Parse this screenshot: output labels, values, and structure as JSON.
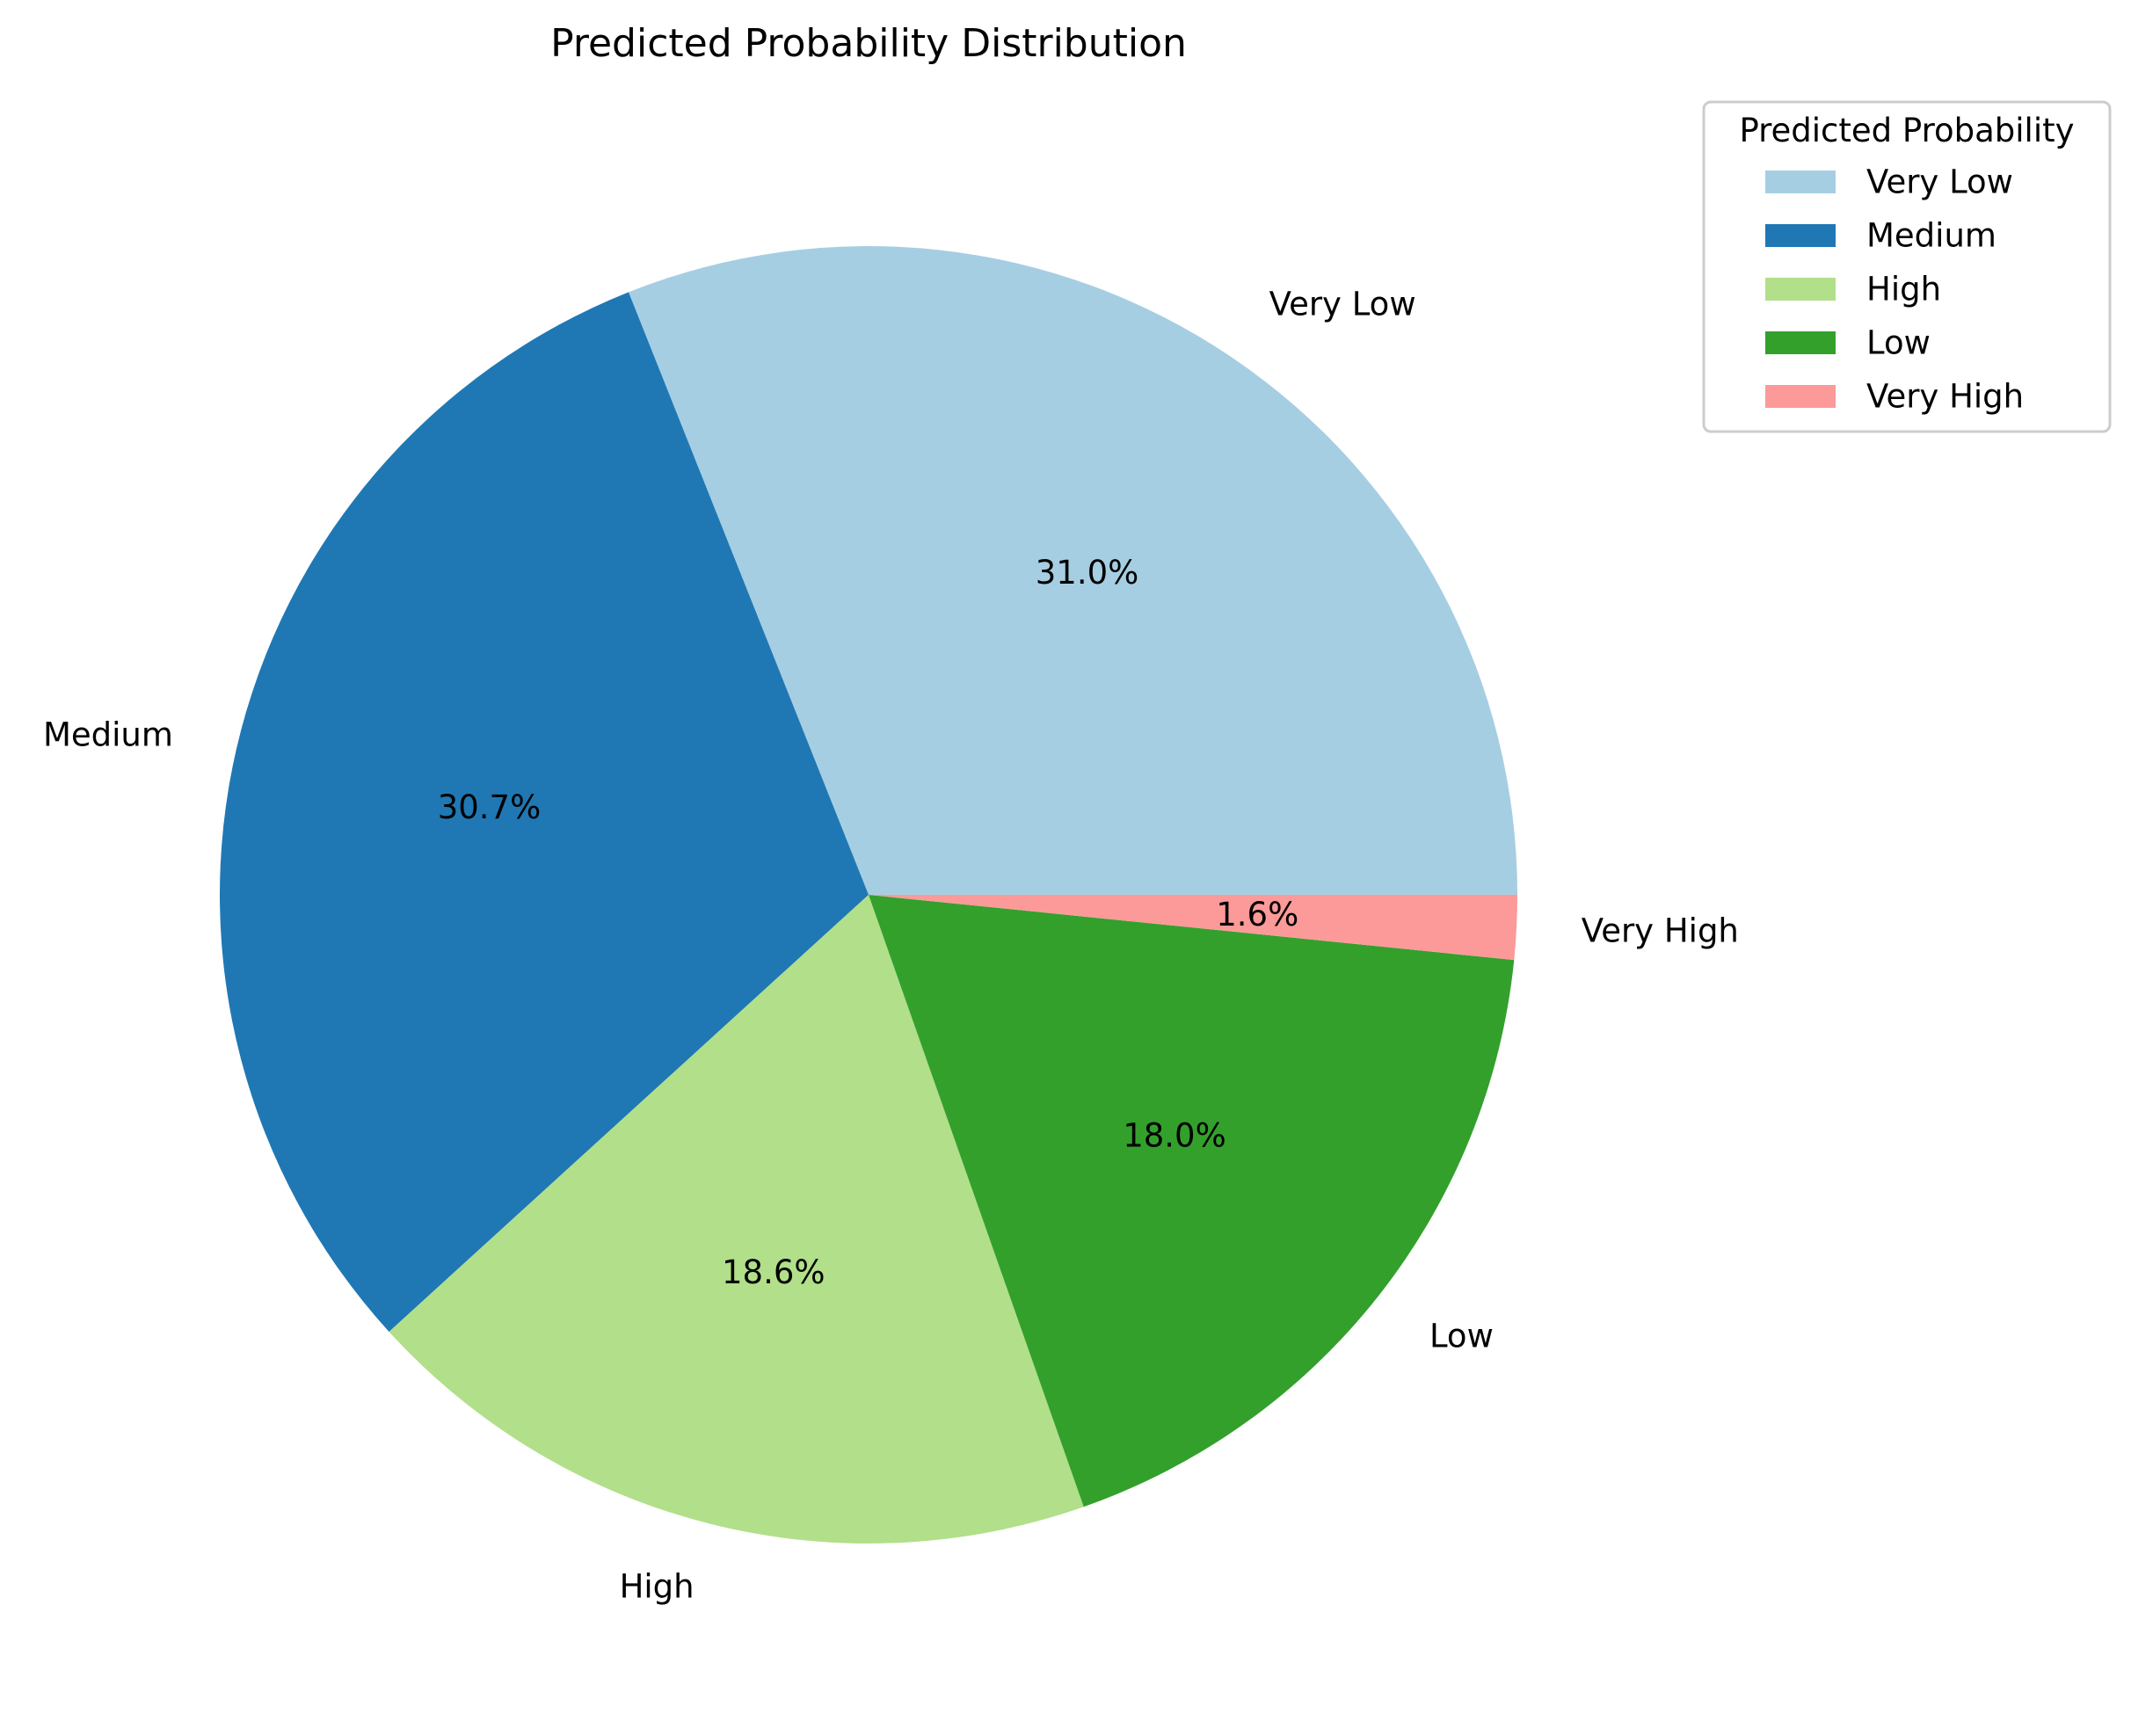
{
  "chart_data": {
    "type": "pie",
    "title": "Predicted Probability Distribution",
    "slices": [
      {
        "label": "Very Low",
        "value": 31.0,
        "pct_label": "31.0%",
        "color": "#a6cee3"
      },
      {
        "label": "Medium",
        "value": 30.7,
        "pct_label": "30.7%",
        "color": "#1f78b4"
      },
      {
        "label": "High",
        "value": 18.6,
        "pct_label": "18.6%",
        "color": "#b2df8a"
      },
      {
        "label": "Low",
        "value": 18.0,
        "pct_label": "18.0%",
        "color": "#33a02c"
      },
      {
        "label": "Very High",
        "value": 1.6,
        "pct_label": "1.6%",
        "color": "#fb9a99"
      }
    ],
    "start_angle_deg": 0,
    "direction": "counterclockwise",
    "legend": {
      "title": "Predicted Probability",
      "placement": "top-right",
      "entries": [
        "Very Low",
        "Medium",
        "High",
        "Low",
        "Very High"
      ]
    }
  }
}
